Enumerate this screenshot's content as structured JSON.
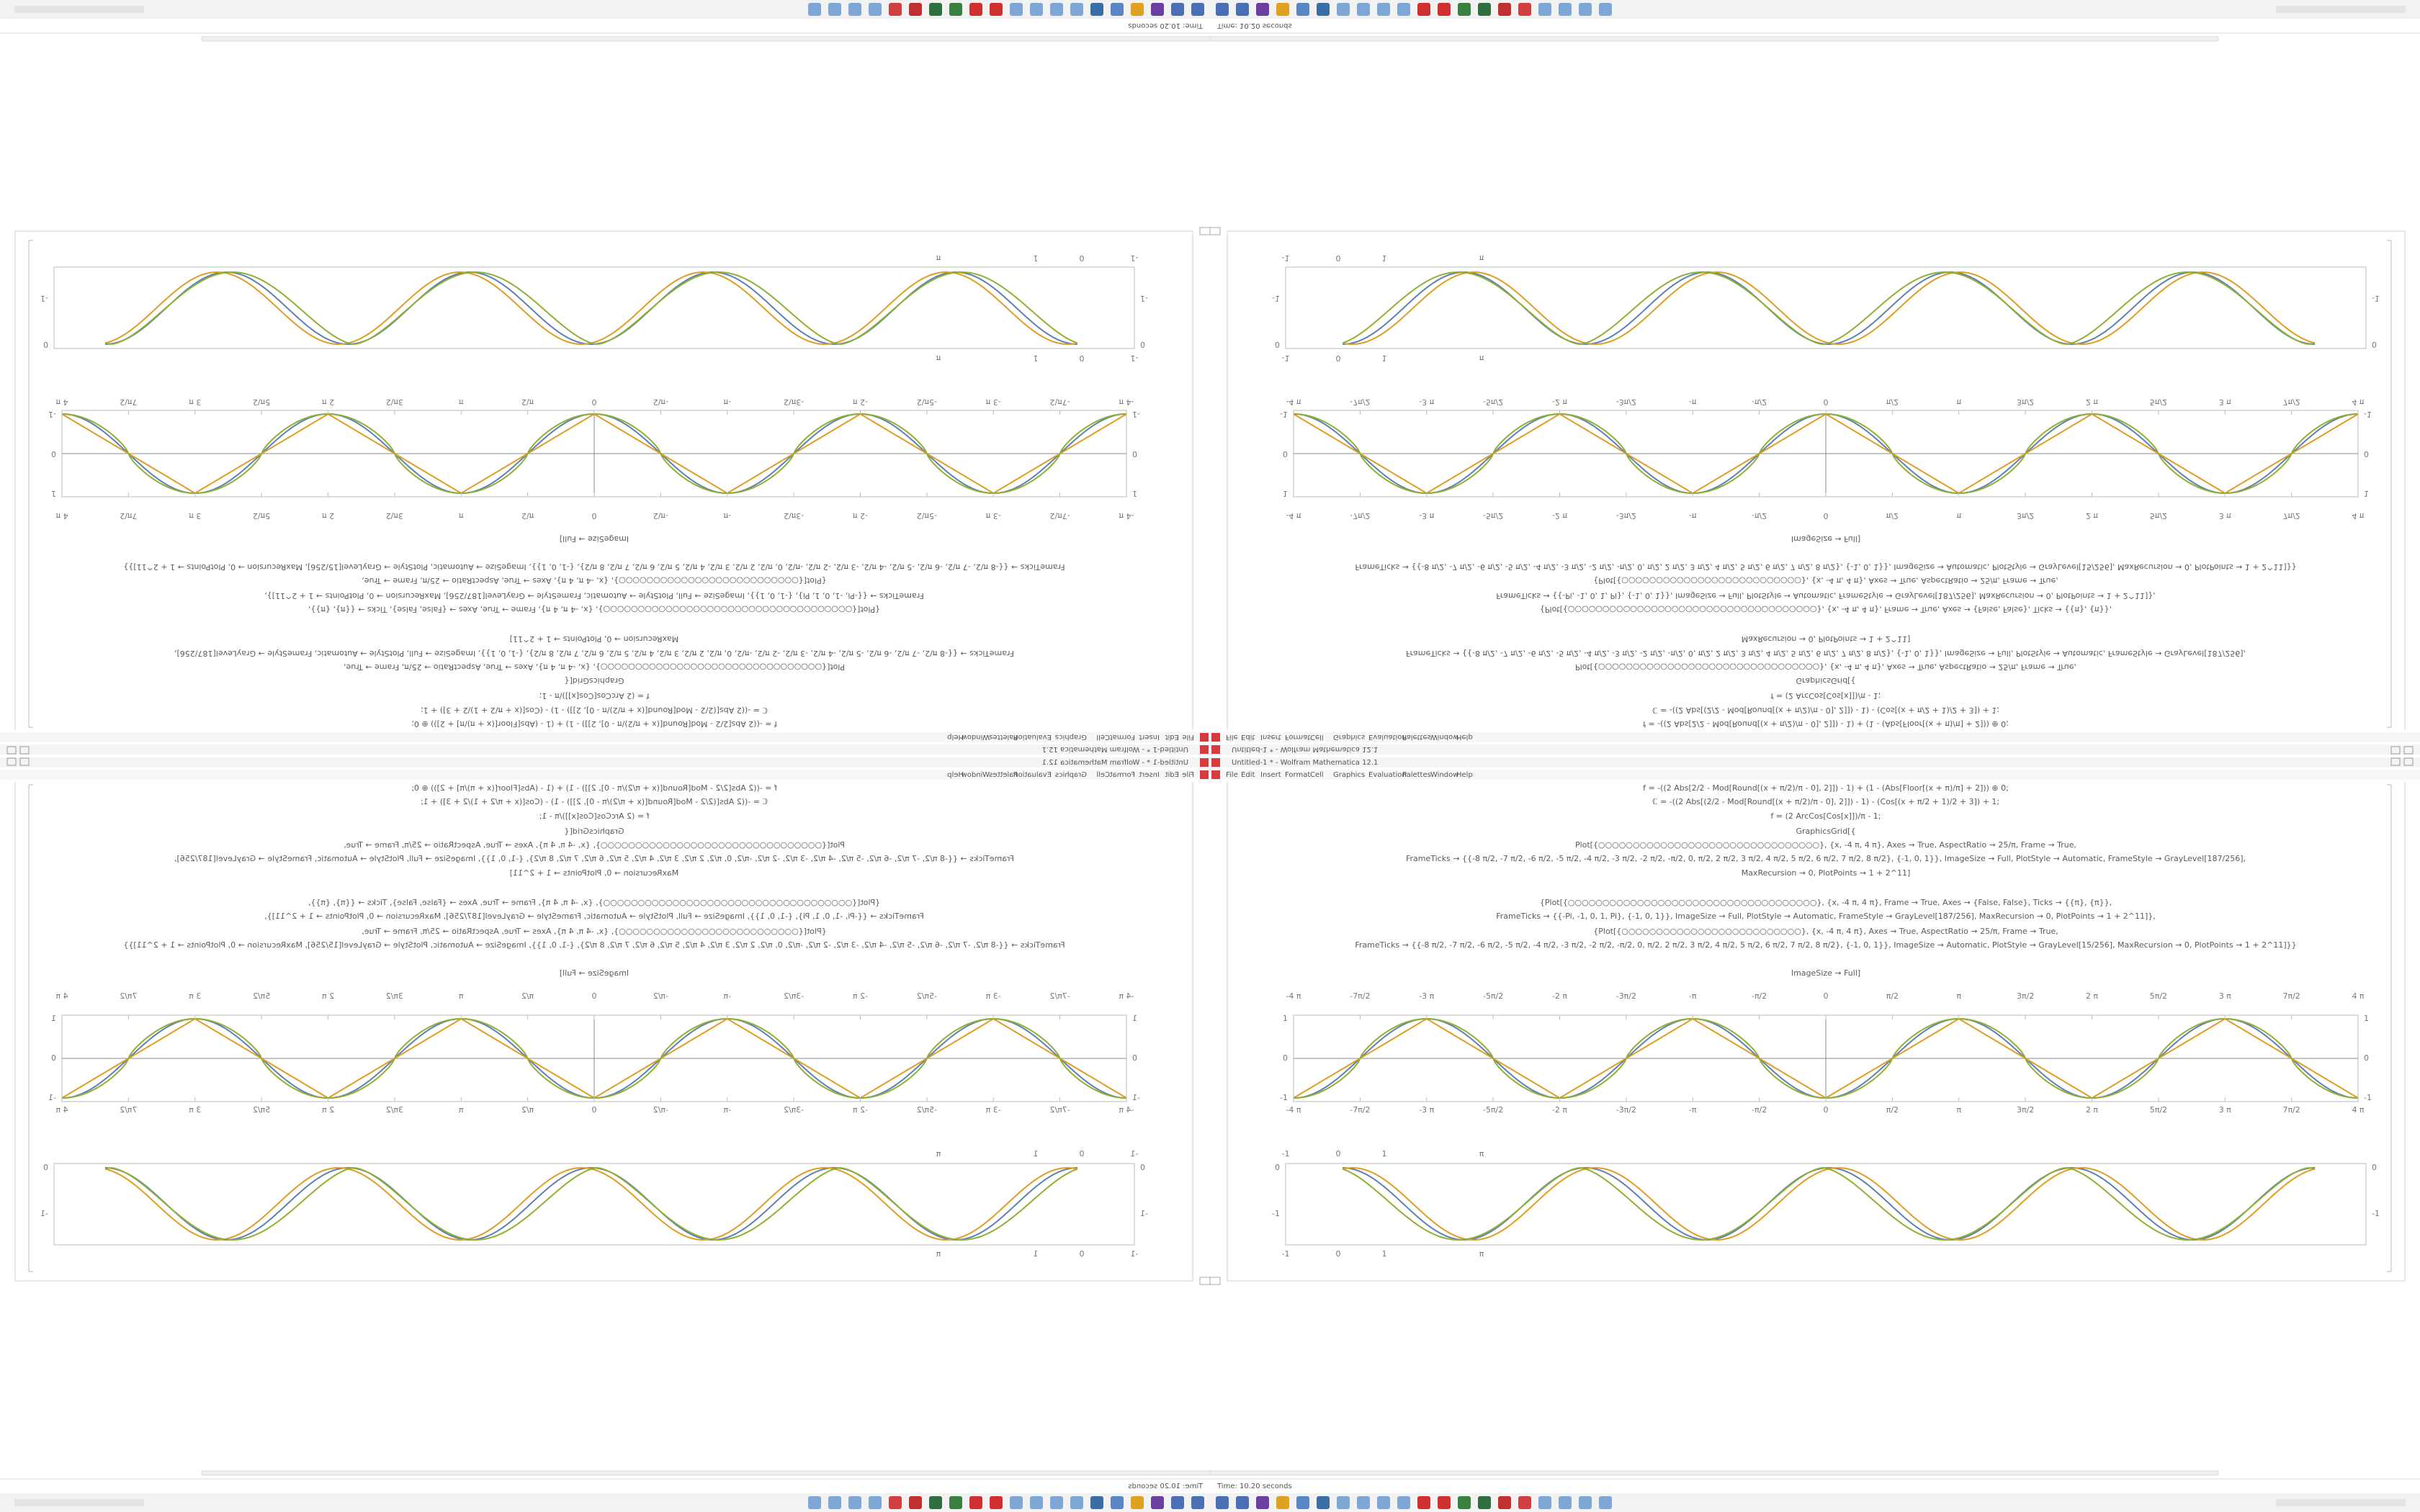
{
  "window": {
    "title": "Untitled-1 * - Wolfram Mathematica 12.1",
    "menu": [
      "File",
      "Edit",
      "Insert",
      "Format",
      "Cell",
      "Graphics",
      "Evaluation",
      "Palettes",
      "Window",
      "Help"
    ]
  },
  "code": [
    "f = -((2 Abs[2/2 - Mod[Round[(x + π/2)/π - 0], 2]]) - 1) + (1 - (Abs[Floor[(x + π)/π] + 2])) ⊕ 0;",
    "ℂ = -((2 Abs[(2/2 - Mod[Round[(x + π/2)/π - 0], 2]]) - 1) - (Cos[(x + π/2 + 1)/2 + 3]) + 1;",
    "f = (2 ArcCos[Cos[x]])/π - 1;",
    "GraphicsGrid[{",
    "Plot[{○○○○○○○○○○○○○○○○○○○○○○○○○○○○○○○○}, {x, -4 π, 4 π}, Axes → True, AspectRatio → 25/π, Frame → True,",
    "FrameTicks → {{-8 π/2, -7 π/2, -6 π/2, -5 π/2, -4 π/2, -3 π/2, -2 π/2, -π/2, 0, π/2, 2 π/2, 3 π/2, 4 π/2, 5 π/2, 6 π/2, 7 π/2, 8 π/2}, {-1, 0, 1}}, ImageSize → Full, PlotStyle → Automatic, FrameStyle → GrayLevel[187/256],",
    "MaxRecursion → 0, PlotPoints → 1 + 2^11]",
    "{Plot[{○○○○○○○○○○○○○○○○○○○○○○○○○○○○○○○○○○○○}, {x, -4 π, 4 π}, Frame → True, Axes → {False, False}, Ticks → {{π}, {π}},",
    "FrameTicks → {{-Pi, -1, 0, 1, Pi}, {-1, 0, 1}}, ImageSize → Full, PlotStyle → Automatic, FrameStyle → GrayLevel[187/256], MaxRecursion → 0, PlotPoints → 1 + 2^11]},",
    "{Plot[{○○○○○○○○○○○○○○○○○○○○○○○○○○}, {x, -4 π, 4 π}, Axes → True, AspectRatio → 25/π, Frame → True,",
    "FrameTicks → {{-8 π/2, -7 π/2, -6 π/2, -5 π/2, -4 π/2, -3 π/2, -2 π/2, -π/2, 0, π/2, 2 π/2, 3 π/2, 4 π/2, 5 π/2, 6 π/2, 7 π/2, 8 π/2}, {-1, 0, 1}}, ImageSize → Automatic, PlotStyle → GrayLevel[15/256], MaxRecursion → 0, PlotPoints → 1 + 2^11]}}",
    "ImageSize → Full]"
  ],
  "plot1": {
    "xticks": [
      "-4 π",
      "-7π/2",
      "-3 π",
      "-5π/2",
      "-2 π",
      "-3π/2",
      "-π",
      "-π/2",
      "0",
      "π/2",
      "π",
      "3π/2",
      "2 π",
      "5π/2",
      "3 π",
      "7π/2",
      "4 π"
    ],
    "yticks": [
      "1",
      "0",
      "-1"
    ]
  },
  "plot2": {
    "xticks": [
      "-1",
      "0",
      "1",
      "π"
    ],
    "yticks": [
      "0",
      "-1"
    ]
  },
  "status": "Time: 10.20 seconds"
}
